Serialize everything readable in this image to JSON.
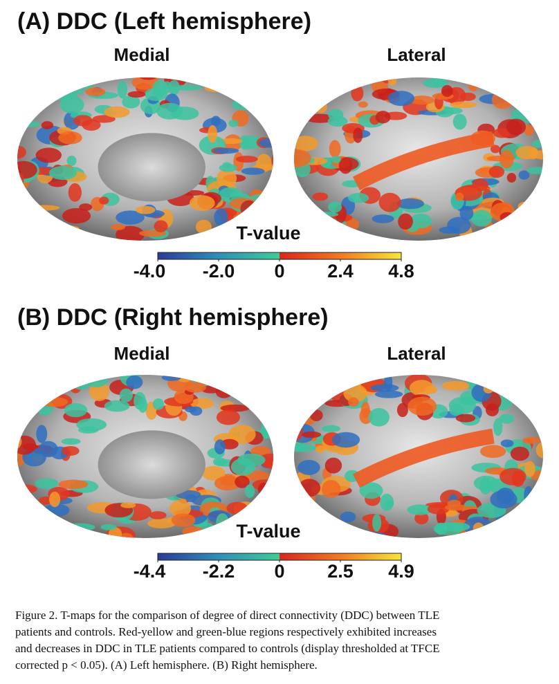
{
  "panels": [
    {
      "title": "(A) DDC (Left hemisphere)",
      "views": [
        "Medial",
        "Lateral"
      ],
      "colorbar": {
        "title": "T-value",
        "ticks": [
          "-4.0",
          "-2.0",
          "0",
          "2.4",
          "4.8"
        ]
      }
    },
    {
      "title": "(B) DDC (Right hemisphere)",
      "views": [
        "Medial",
        "Lateral"
      ],
      "colorbar": {
        "title": "T-value",
        "ticks": [
          "-4.4",
          "-2.2",
          "0",
          "2.5",
          "4.9"
        ]
      }
    }
  ],
  "caption": {
    "lines": [
      "Figure 2. T-maps for the comparison of degree of direct connectivity (DDC) between TLE",
      "patients and controls. Red-yellow and green-blue regions respectively exhibited increases",
      "and decreases in DDC in TLE patients compared to controls (display thresholded at TFCE",
      "corrected p < 0.05). (A) Left hemisphere. (B) Right hemisphere."
    ]
  }
}
